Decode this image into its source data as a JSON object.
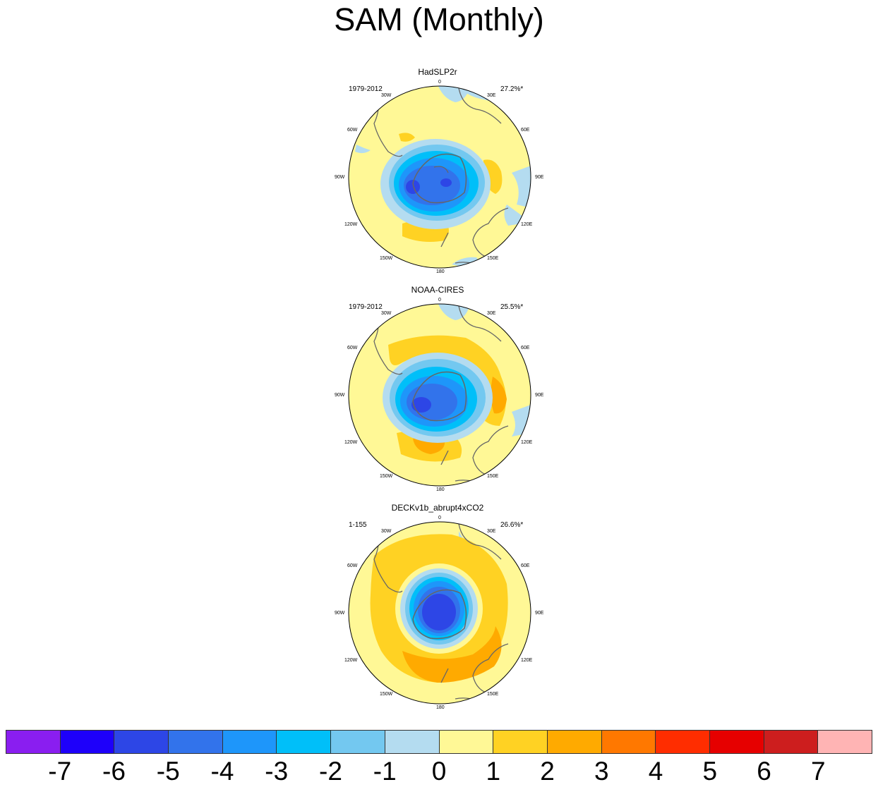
{
  "title": "SAM (Monthly)",
  "panels": [
    {
      "title": "HadSLP2r",
      "period": "1979-2012",
      "percent": "27.2%*"
    },
    {
      "title": "NOAA-CIRES",
      "period": "1979-2012",
      "percent": "25.5%*"
    },
    {
      "title": "DECKv1b_abrupt4xCO2",
      "period": "1-155",
      "percent": "26.6%*"
    }
  ],
  "lon_labels": [
    "0",
    "30E",
    "60E",
    "90E",
    "120E",
    "150E",
    "180",
    "150W",
    "120W",
    "90W",
    "60W",
    "30W"
  ],
  "colorbar": {
    "colors": [
      "#8a1ef0",
      "#1e00fa",
      "#2d46e6",
      "#3273eb",
      "#1e96fa",
      "#00bff9",
      "#73c8f0",
      "#b4dcf0",
      "#fff896",
      "#ffd223",
      "#ffaa00",
      "#ff7800",
      "#ff2d00",
      "#e60000",
      "#cd1e1e",
      "#ffb4b4"
    ],
    "labels": [
      "-7",
      "-6",
      "-5",
      "-4",
      "-3",
      "-2",
      "-1",
      "0",
      "1",
      "2",
      "3",
      "4",
      "5",
      "6",
      "7"
    ]
  }
}
